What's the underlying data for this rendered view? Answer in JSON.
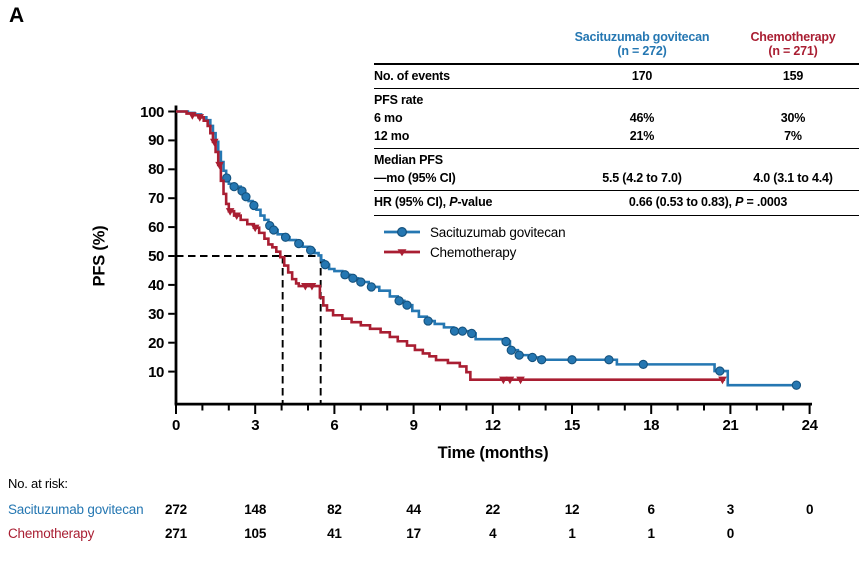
{
  "panel_label": "A",
  "colors": {
    "sg": "#2577B2",
    "sg_dark": "#15527E",
    "chemo": "#A91E32",
    "axis": "#000000",
    "background": "#FFFFFF"
  },
  "stats_table": {
    "header": {
      "sg_name": "Sacituzumab govitecan",
      "sg_n": "(n = 272)",
      "ct_name": "Chemotherapy",
      "ct_n": "(n = 271)"
    },
    "rows": {
      "events_label": "No. of events",
      "events_sg": "170",
      "events_ct": "159",
      "pfs_rate_label": "PFS rate",
      "m6_label": "6 mo",
      "m6_sg": "46%",
      "m6_ct": "30%",
      "m12_label": "12 mo",
      "m12_sg": "21%",
      "m12_ct": "7%",
      "median_label": "Median PFS",
      "median_sub_label": "—mo (95% CI)",
      "median_sg": "5.5 (4.2 to 7.0)",
      "median_ct": "4.0 (3.1 to 4.4)",
      "hr_label_pre": "HR (95% CI), ",
      "hr_label_it": "P",
      "hr_label_post": "-value",
      "hr_value_pre": "0.66 (0.53 to 0.83), ",
      "hr_value_it": "P",
      "hr_value_post": " = .0003"
    }
  },
  "at_risk": {
    "title": "No. at risk:",
    "rows": [
      {
        "label": "Sacituzumab govitecan",
        "color": "#2577B2",
        "counts": [
          272,
          148,
          82,
          44,
          22,
          12,
          6,
          3,
          0
        ]
      },
      {
        "label": "Chemotherapy",
        "color": "#A91E32",
        "counts": [
          271,
          105,
          41,
          17,
          4,
          1,
          1,
          0
        ]
      }
    ]
  },
  "chart_data": {
    "type": "line",
    "subtype": "kaplan-meier-step",
    "title": "",
    "xlabel": "Time (months)",
    "ylabel": "PFS (%)",
    "xlim": [
      0,
      24
    ],
    "ylim": [
      0,
      100
    ],
    "xticks": [
      0,
      3,
      6,
      9,
      12,
      15,
      18,
      21,
      24
    ],
    "minor_xtick_every": 1,
    "yticks": [
      10,
      20,
      30,
      40,
      50,
      60,
      70,
      80,
      90,
      100
    ],
    "grid": false,
    "legend_position": "inside-upper-middle",
    "median_guides": {
      "y_pct": 50,
      "x_months": [
        4.04,
        5.48
      ]
    },
    "series": [
      {
        "name": "Sacituzumab govitecan",
        "color": "#2577B2",
        "marker": "circle",
        "end_month": 23.55,
        "steps": [
          [
            0,
            100
          ],
          [
            0.45,
            99.5
          ],
          [
            0.7,
            99
          ],
          [
            0.95,
            98
          ],
          [
            1.15,
            97
          ],
          [
            1.3,
            95
          ],
          [
            1.4,
            92.5
          ],
          [
            1.5,
            89.5
          ],
          [
            1.6,
            86
          ],
          [
            1.7,
            82.5
          ],
          [
            1.8,
            79.5
          ],
          [
            1.9,
            77
          ],
          [
            2.0,
            75
          ],
          [
            2.15,
            74
          ],
          [
            2.45,
            72.5
          ],
          [
            2.6,
            70.5
          ],
          [
            2.75,
            69
          ],
          [
            2.9,
            67.5
          ],
          [
            3.05,
            66
          ],
          [
            3.2,
            64
          ],
          [
            3.35,
            62.5
          ],
          [
            3.5,
            60.5
          ],
          [
            3.65,
            59
          ],
          [
            3.85,
            57.5
          ],
          [
            4.05,
            56.5
          ],
          [
            4.3,
            55.5
          ],
          [
            4.55,
            54.3
          ],
          [
            4.8,
            53.2
          ],
          [
            5.05,
            52
          ],
          [
            5.25,
            51
          ],
          [
            5.4,
            50.2
          ],
          [
            5.5,
            48.5
          ],
          [
            5.6,
            47
          ],
          [
            5.8,
            45.5
          ],
          [
            6.0,
            44.8
          ],
          [
            6.3,
            43.5
          ],
          [
            6.6,
            42.3
          ],
          [
            6.9,
            41
          ],
          [
            7.3,
            39.3
          ],
          [
            7.7,
            38
          ],
          [
            8.1,
            36
          ],
          [
            8.4,
            34.5
          ],
          [
            8.65,
            33
          ],
          [
            8.95,
            31
          ],
          [
            9.2,
            29
          ],
          [
            9.5,
            27.5
          ],
          [
            9.8,
            26.5
          ],
          [
            10.15,
            25.3
          ],
          [
            10.5,
            24
          ],
          [
            11.1,
            23.2
          ],
          [
            11.35,
            21.2
          ],
          [
            12.45,
            20.4
          ],
          [
            12.65,
            17.4
          ],
          [
            12.95,
            15.7
          ],
          [
            13.35,
            14.9
          ],
          [
            13.75,
            14.1
          ],
          [
            16.7,
            12.5
          ],
          [
            20.4,
            10.2
          ],
          [
            20.9,
            5.3
          ]
        ],
        "censors": [
          [
            1.92,
            77
          ],
          [
            2.2,
            74
          ],
          [
            2.5,
            72.5
          ],
          [
            2.65,
            70.5
          ],
          [
            2.95,
            67.5
          ],
          [
            3.55,
            60.5
          ],
          [
            3.7,
            59
          ],
          [
            4.15,
            56.5
          ],
          [
            4.65,
            54.3
          ],
          [
            5.1,
            52
          ],
          [
            5.65,
            47
          ],
          [
            6.4,
            43.5
          ],
          [
            6.7,
            42.3
          ],
          [
            7.0,
            41
          ],
          [
            7.4,
            39.3
          ],
          [
            8.45,
            34.5
          ],
          [
            8.75,
            33
          ],
          [
            9.55,
            27.5
          ],
          [
            10.55,
            24
          ],
          [
            10.85,
            24
          ],
          [
            11.2,
            23.2
          ],
          [
            12.5,
            20.4
          ],
          [
            12.7,
            17.4
          ],
          [
            13.0,
            15.7
          ],
          [
            13.5,
            14.9
          ],
          [
            13.85,
            14.1
          ],
          [
            15.0,
            14.1
          ],
          [
            16.4,
            14.1
          ],
          [
            17.7,
            12.5
          ],
          [
            20.6,
            10.2
          ],
          [
            23.5,
            5.3
          ]
        ]
      },
      {
        "name": "Chemotherapy",
        "color": "#A91E32",
        "marker": "triangle",
        "end_month": 20.8,
        "steps": [
          [
            0,
            100
          ],
          [
            0.4,
            99.3
          ],
          [
            0.6,
            98.7
          ],
          [
            0.85,
            98
          ],
          [
            1.05,
            96.8
          ],
          [
            1.2,
            95
          ],
          [
            1.3,
            92.5
          ],
          [
            1.4,
            89.5
          ],
          [
            1.5,
            86
          ],
          [
            1.6,
            81.5
          ],
          [
            1.7,
            76
          ],
          [
            1.8,
            71.5
          ],
          [
            1.9,
            68
          ],
          [
            2.0,
            65.5
          ],
          [
            2.2,
            64
          ],
          [
            2.45,
            62.5
          ],
          [
            2.7,
            61
          ],
          [
            2.95,
            59.8
          ],
          [
            3.15,
            58
          ],
          [
            3.35,
            56
          ],
          [
            3.5,
            54
          ],
          [
            3.65,
            53
          ],
          [
            3.8,
            51.5
          ],
          [
            3.95,
            49.6
          ],
          [
            4.1,
            46.7
          ],
          [
            4.25,
            44.3
          ],
          [
            4.4,
            42
          ],
          [
            4.55,
            40.5
          ],
          [
            4.65,
            39.6
          ],
          [
            5.45,
            35.7
          ],
          [
            5.58,
            32.9
          ],
          [
            5.72,
            31.2
          ],
          [
            5.95,
            29.5
          ],
          [
            6.3,
            28.3
          ],
          [
            6.65,
            27.1
          ],
          [
            7.0,
            26
          ],
          [
            7.35,
            24.8
          ],
          [
            7.75,
            23.6
          ],
          [
            8.1,
            22
          ],
          [
            8.4,
            20.5
          ],
          [
            8.75,
            19
          ],
          [
            9.05,
            17.5
          ],
          [
            9.35,
            16.3
          ],
          [
            9.6,
            15.3
          ],
          [
            9.85,
            14
          ],
          [
            10.3,
            13
          ],
          [
            10.75,
            11.8
          ],
          [
            11.0,
            9.8
          ],
          [
            11.15,
            7.2
          ]
        ],
        "censors": [
          [
            0.62,
            98.7
          ],
          [
            0.9,
            98
          ],
          [
            1.45,
            89.5
          ],
          [
            1.65,
            81.5
          ],
          [
            2.05,
            65.5
          ],
          [
            2.3,
            64
          ],
          [
            3.0,
            59.8
          ],
          [
            4.9,
            39.6
          ],
          [
            5.15,
            39.6
          ],
          [
            12.4,
            7.2
          ],
          [
            12.65,
            7.2
          ],
          [
            13.05,
            7.2
          ],
          [
            20.7,
            7.2
          ]
        ]
      }
    ]
  }
}
